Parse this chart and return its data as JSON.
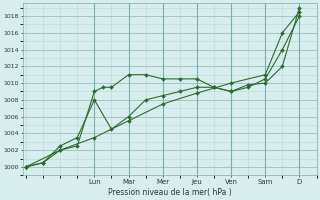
{
  "background_color": "#d8eeee",
  "grid_color": "#b8d8d8",
  "grid_color_major": "#9dbfbf",
  "line_color": "#2d6a2d",
  "ylabel": "Pression niveau de la mer( hPa )",
  "ylim": [
    999,
    1019.5
  ],
  "yticks": [
    1000,
    1002,
    1004,
    1006,
    1008,
    1010,
    1012,
    1014,
    1016,
    1018
  ],
  "day_labels": [
    "Lun",
    "Mar",
    "Mer",
    "Jeu",
    "Ven",
    "Sam",
    "D"
  ],
  "day_positions": [
    2,
    3,
    4,
    5,
    6,
    7,
    8
  ],
  "xlim": [
    -0.1,
    8.5
  ],
  "series1_x": [
    0,
    0.5,
    1.0,
    1.5,
    2.0,
    2.25,
    2.5,
    3.0,
    3.5,
    4.0,
    4.5,
    5.0,
    5.5,
    6.0,
    6.5,
    7.0,
    7.5,
    8.0
  ],
  "series1_y": [
    1000,
    1000.5,
    1002,
    1002.5,
    1009,
    1009.5,
    1009.5,
    1011,
    1011,
    1010.5,
    1010.5,
    1010.5,
    1009.5,
    1009,
    1009.8,
    1010,
    1012,
    1019
  ],
  "series2_x": [
    0,
    0.5,
    1.0,
    1.5,
    2.0,
    2.5,
    3.0,
    3.5,
    4.0,
    4.5,
    5.0,
    5.5,
    6.0,
    6.5,
    7.0,
    7.5,
    8.0
  ],
  "series2_y": [
    1000,
    1000.5,
    1002.5,
    1003.5,
    1008,
    1004.5,
    1006,
    1008,
    1008.5,
    1009,
    1009.5,
    1009.5,
    1009,
    1009.5,
    1010.5,
    1014,
    1018
  ],
  "series3_x": [
    0,
    1.0,
    2.0,
    3.0,
    4.0,
    5.0,
    6.0,
    7.0,
    7.5,
    8.0
  ],
  "series3_y": [
    1000,
    1002,
    1003.5,
    1005.5,
    1007.5,
    1008.8,
    1010,
    1011,
    1016,
    1018.5
  ]
}
